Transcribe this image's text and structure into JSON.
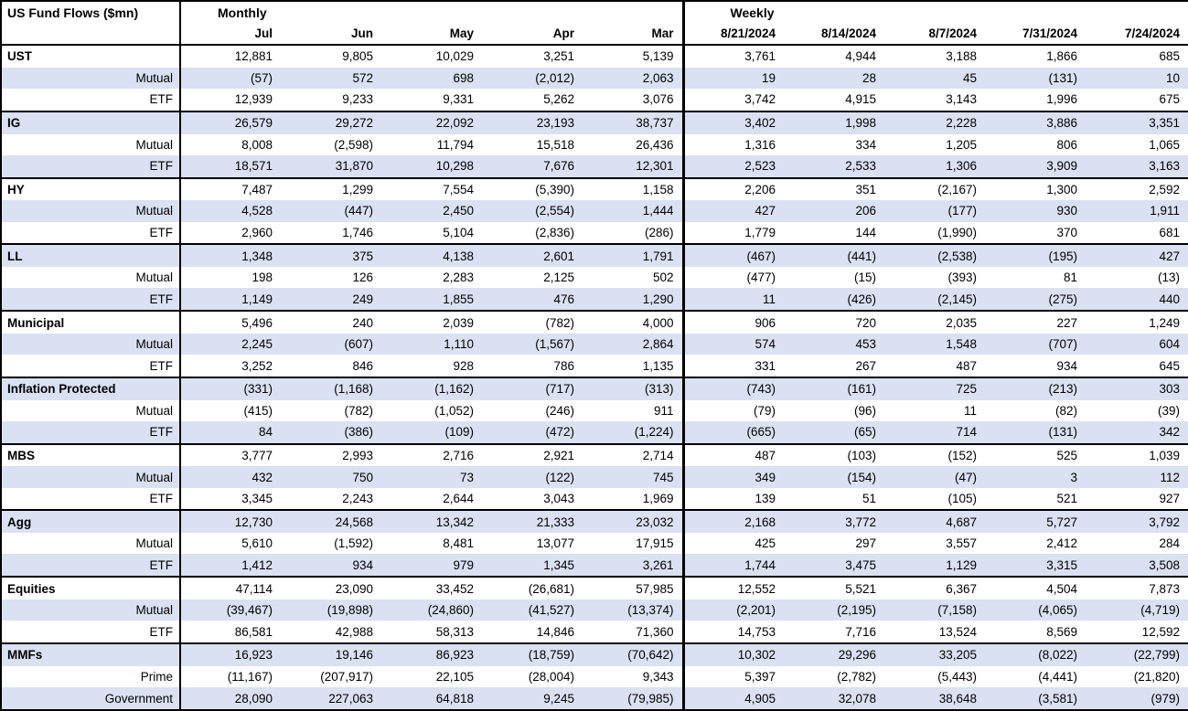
{
  "colors": {
    "stripe": "#d9e1f2",
    "border": "#000000",
    "background": "#ffffff",
    "text": "#000000"
  },
  "chart_data": {
    "type": "table",
    "title": "US Fund Flows ($mn)",
    "column_groups": [
      {
        "label": "Monthly",
        "columns": [
          "Jul",
          "Jun",
          "May",
          "Apr",
          "Mar"
        ]
      },
      {
        "label": "Weekly",
        "columns": [
          "8/21/2024",
          "8/14/2024",
          "8/7/2024",
          "7/31/2024",
          "7/24/2024"
        ]
      }
    ],
    "rows": [
      {
        "label": "UST",
        "kind": "category",
        "values": [
          "12,881",
          "9,805",
          "10,029",
          "3,251",
          "5,139",
          "3,761",
          "4,944",
          "3,188",
          "1,866",
          "685"
        ]
      },
      {
        "label": "Mutual",
        "kind": "sub",
        "values": [
          "(57)",
          "572",
          "698",
          "(2,012)",
          "2,063",
          "19",
          "28",
          "45",
          "(131)",
          "10"
        ]
      },
      {
        "label": "ETF",
        "kind": "sub",
        "values": [
          "12,939",
          "9,233",
          "9,331",
          "5,262",
          "3,076",
          "3,742",
          "4,915",
          "3,143",
          "1,996",
          "675"
        ]
      },
      {
        "label": "IG",
        "kind": "category",
        "values": [
          "26,579",
          "29,272",
          "22,092",
          "23,193",
          "38,737",
          "3,402",
          "1,998",
          "2,228",
          "3,886",
          "3,351"
        ]
      },
      {
        "label": "Mutual",
        "kind": "sub",
        "values": [
          "8,008",
          "(2,598)",
          "11,794",
          "15,518",
          "26,436",
          "1,316",
          "334",
          "1,205",
          "806",
          "1,065"
        ]
      },
      {
        "label": "ETF",
        "kind": "sub",
        "values": [
          "18,571",
          "31,870",
          "10,298",
          "7,676",
          "12,301",
          "2,523",
          "2,533",
          "1,306",
          "3,909",
          "3,163"
        ]
      },
      {
        "label": "HY",
        "kind": "category",
        "values": [
          "7,487",
          "1,299",
          "7,554",
          "(5,390)",
          "1,158",
          "2,206",
          "351",
          "(2,167)",
          "1,300",
          "2,592"
        ]
      },
      {
        "label": "Mutual",
        "kind": "sub",
        "values": [
          "4,528",
          "(447)",
          "2,450",
          "(2,554)",
          "1,444",
          "427",
          "206",
          "(177)",
          "930",
          "1,911"
        ]
      },
      {
        "label": "ETF",
        "kind": "sub",
        "values": [
          "2,960",
          "1,746",
          "5,104",
          "(2,836)",
          "(286)",
          "1,779",
          "144",
          "(1,990)",
          "370",
          "681"
        ]
      },
      {
        "label": "LL",
        "kind": "category",
        "values": [
          "1,348",
          "375",
          "4,138",
          "2,601",
          "1,791",
          "(467)",
          "(441)",
          "(2,538)",
          "(195)",
          "427"
        ]
      },
      {
        "label": "Mutual",
        "kind": "sub",
        "values": [
          "198",
          "126",
          "2,283",
          "2,125",
          "502",
          "(477)",
          "(15)",
          "(393)",
          "81",
          "(13)"
        ]
      },
      {
        "label": "ETF",
        "kind": "sub",
        "values": [
          "1,149",
          "249",
          "1,855",
          "476",
          "1,290",
          "11",
          "(426)",
          "(2,145)",
          "(275)",
          "440"
        ]
      },
      {
        "label": "Municipal",
        "kind": "category",
        "values": [
          "5,496",
          "240",
          "2,039",
          "(782)",
          "4,000",
          "906",
          "720",
          "2,035",
          "227",
          "1,249"
        ]
      },
      {
        "label": "Mutual",
        "kind": "sub",
        "values": [
          "2,245",
          "(607)",
          "1,110",
          "(1,567)",
          "2,864",
          "574",
          "453",
          "1,548",
          "(707)",
          "604"
        ]
      },
      {
        "label": "ETF",
        "kind": "sub",
        "values": [
          "3,252",
          "846",
          "928",
          "786",
          "1,135",
          "331",
          "267",
          "487",
          "934",
          "645"
        ]
      },
      {
        "label": "Inflation Protected",
        "kind": "category",
        "values": [
          "(331)",
          "(1,168)",
          "(1,162)",
          "(717)",
          "(313)",
          "(743)",
          "(161)",
          "725",
          "(213)",
          "303"
        ]
      },
      {
        "label": "Mutual",
        "kind": "sub",
        "values": [
          "(415)",
          "(782)",
          "(1,052)",
          "(246)",
          "911",
          "(79)",
          "(96)",
          "11",
          "(82)",
          "(39)"
        ]
      },
      {
        "label": "ETF",
        "kind": "sub",
        "values": [
          "84",
          "(386)",
          "(109)",
          "(472)",
          "(1,224)",
          "(665)",
          "(65)",
          "714",
          "(131)",
          "342"
        ]
      },
      {
        "label": "MBS",
        "kind": "category",
        "values": [
          "3,777",
          "2,993",
          "2,716",
          "2,921",
          "2,714",
          "487",
          "(103)",
          "(152)",
          "525",
          "1,039"
        ]
      },
      {
        "label": "Mutual",
        "kind": "sub",
        "values": [
          "432",
          "750",
          "73",
          "(122)",
          "745",
          "349",
          "(154)",
          "(47)",
          "3",
          "112"
        ]
      },
      {
        "label": "ETF",
        "kind": "sub",
        "values": [
          "3,345",
          "2,243",
          "2,644",
          "3,043",
          "1,969",
          "139",
          "51",
          "(105)",
          "521",
          "927"
        ]
      },
      {
        "label": "Agg",
        "kind": "category",
        "values": [
          "12,730",
          "24,568",
          "13,342",
          "21,333",
          "23,032",
          "2,168",
          "3,772",
          "4,687",
          "5,727",
          "3,792"
        ]
      },
      {
        "label": "Mutual",
        "kind": "sub",
        "values": [
          "5,610",
          "(1,592)",
          "8,481",
          "13,077",
          "17,915",
          "425",
          "297",
          "3,557",
          "2,412",
          "284"
        ]
      },
      {
        "label": "ETF",
        "kind": "sub",
        "values": [
          "1,412",
          "934",
          "979",
          "1,345",
          "3,261",
          "1,744",
          "3,475",
          "1,129",
          "3,315",
          "3,508"
        ]
      },
      {
        "label": "Equities",
        "kind": "category",
        "values": [
          "47,114",
          "23,090",
          "33,452",
          "(26,681)",
          "57,985",
          "12,552",
          "5,521",
          "6,367",
          "4,504",
          "7,873"
        ]
      },
      {
        "label": "Mutual",
        "kind": "sub",
        "values": [
          "(39,467)",
          "(19,898)",
          "(24,860)",
          "(41,527)",
          "(13,374)",
          "(2,201)",
          "(2,195)",
          "(7,158)",
          "(4,065)",
          "(4,719)"
        ]
      },
      {
        "label": "ETF",
        "kind": "sub",
        "values": [
          "86,581",
          "42,988",
          "58,313",
          "14,846",
          "71,360",
          "14,753",
          "7,716",
          "13,524",
          "8,569",
          "12,592"
        ]
      },
      {
        "label": "MMFs",
        "kind": "category",
        "values": [
          "16,923",
          "19,146",
          "86,923",
          "(18,759)",
          "(70,642)",
          "10,302",
          "29,296",
          "33,205",
          "(8,022)",
          "(22,799)"
        ]
      },
      {
        "label": "Prime",
        "kind": "sub",
        "values": [
          "(11,167)",
          "(207,917)",
          "22,105",
          "(28,004)",
          "9,343",
          "5,397",
          "(2,782)",
          "(5,443)",
          "(4,441)",
          "(21,820)"
        ]
      },
      {
        "label": "Government",
        "kind": "sub",
        "values": [
          "28,090",
          "227,063",
          "64,818",
          "9,245",
          "(79,985)",
          "4,905",
          "32,078",
          "38,648",
          "(3,581)",
          "(979)"
        ]
      }
    ]
  }
}
